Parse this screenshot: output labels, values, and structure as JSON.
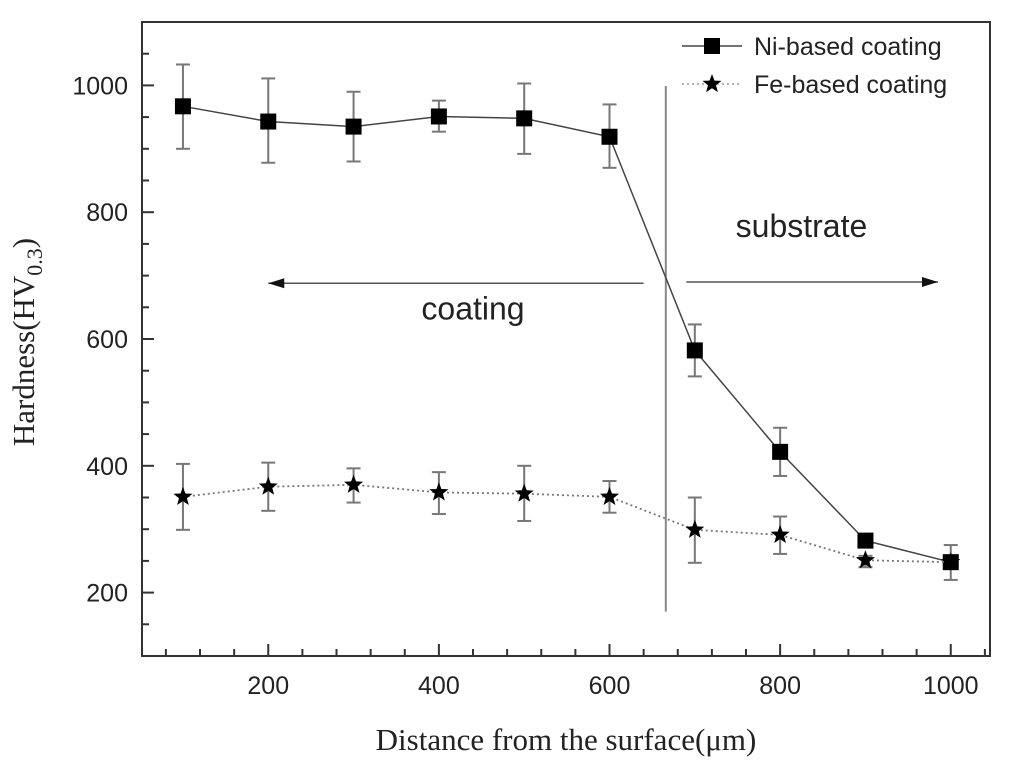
{
  "chart_data": {
    "type": "line",
    "title": "",
    "xlabel": "Distance from the surface(μm)",
    "ylabel_main": "Hardness(HV",
    "ylabel_sub": "0.3",
    "ylabel_close": ")",
    "xlim": [
      52,
      1046
    ],
    "ylim": [
      100,
      1100
    ],
    "x_ticks": [
      200,
      400,
      600,
      800,
      1000
    ],
    "x_tick_labels": [
      "200",
      "400",
      "600",
      "800",
      "1000"
    ],
    "x_minor_step": 40,
    "y_ticks": [
      200,
      400,
      600,
      800,
      1000
    ],
    "y_tick_labels": [
      "200",
      "400",
      "600",
      "800",
      "1000"
    ],
    "y_minor_step": 50,
    "grid": false,
    "legend_position": "top-right",
    "x": [
      100,
      200,
      300,
      400,
      500,
      600,
      700,
      800,
      900,
      1000
    ],
    "series": [
      {
        "name": "Ni-based coating",
        "marker": "square",
        "line_style": "solid",
        "values": [
          967,
          943,
          935,
          951,
          948,
          919,
          582,
          422,
          282,
          248
        ],
        "err_high": [
          1033,
          1011,
          990,
          976,
          1003,
          970,
          623,
          460,
          282,
          275
        ],
        "err_low": [
          900,
          878,
          880,
          927,
          892,
          870,
          541,
          384,
          282,
          220
        ]
      },
      {
        "name": "Fe-based coating",
        "marker": "star",
        "line_style": "dotted",
        "values": [
          351,
          367,
          370,
          358,
          356,
          351,
          299,
          291,
          251,
          248
        ],
        "err_high": [
          403,
          405,
          396,
          390,
          400,
          376,
          350,
          320,
          258,
          248
        ],
        "err_low": [
          299,
          329,
          342,
          324,
          313,
          326,
          247,
          261,
          240,
          248
        ]
      }
    ],
    "annotations": {
      "boundary_x": 666,
      "boundary_y_range": [
        170,
        1100
      ],
      "coating_label": "coating",
      "coating_label_pos": [
        440,
        650
      ],
      "coating_arrow": {
        "from_x": 640,
        "to_x": 200,
        "y": 688
      },
      "substrate_label": "substrate",
      "substrate_label_pos": [
        825,
        780
      ],
      "substrate_arrow": {
        "from_x": 690,
        "to_x": 985,
        "y": 690
      }
    }
  }
}
